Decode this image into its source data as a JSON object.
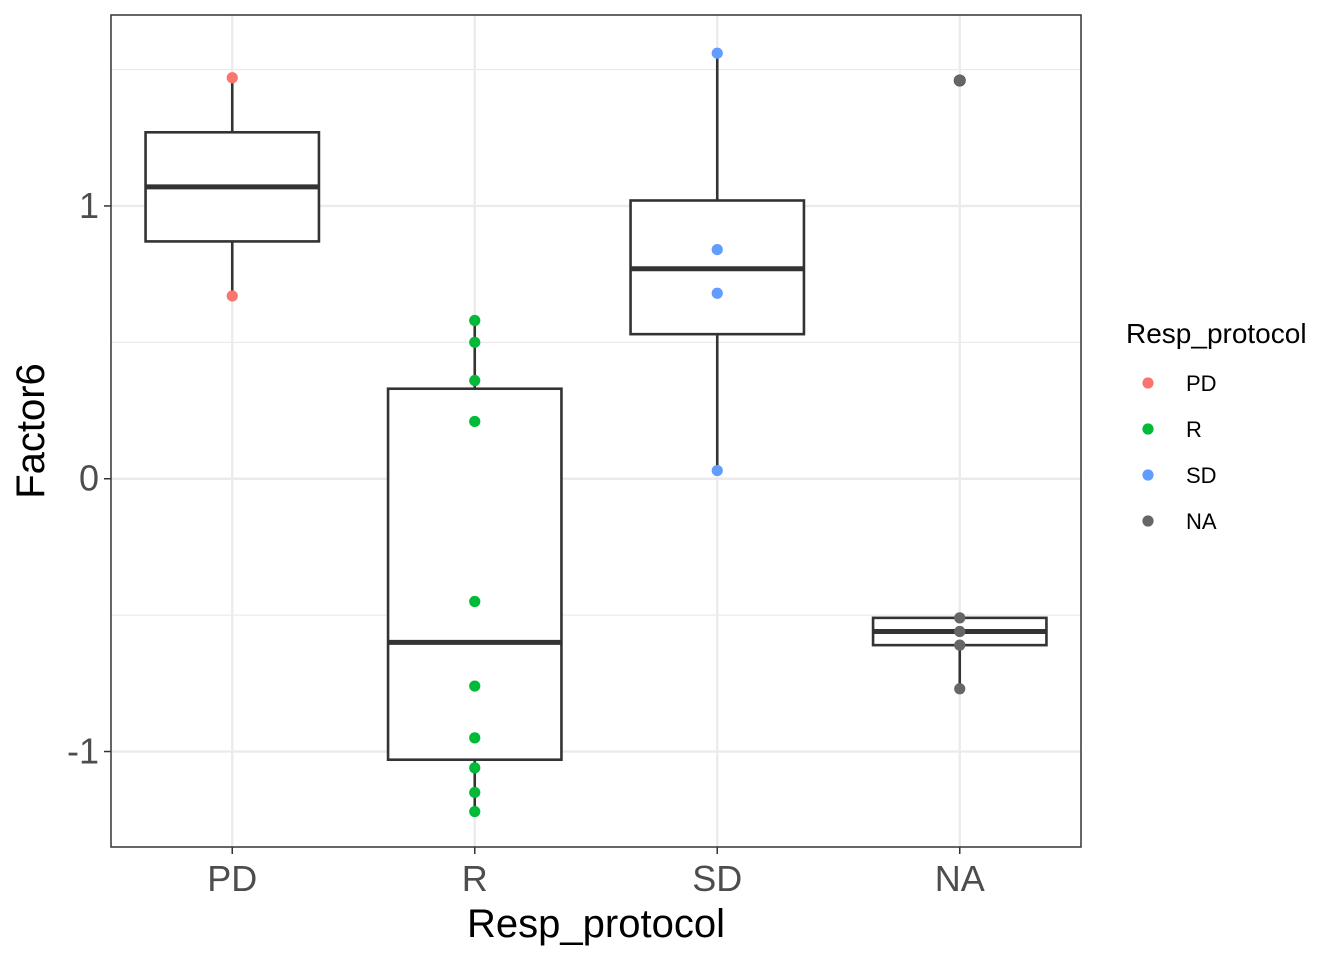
{
  "chart_data": {
    "type": "box",
    "xlabel": "Resp_protocol",
    "ylabel": "Factor6",
    "categories": [
      "PD",
      "R",
      "SD",
      "NA"
    ],
    "y_ticks": [
      -1,
      0,
      1
    ],
    "y_tick_labels": [
      "-1",
      "0",
      "1"
    ],
    "ylim": [
      -1.35,
      1.7
    ],
    "grid": true,
    "legend": {
      "title": "Resp_protocol",
      "position": "right",
      "entries": [
        "PD",
        "R",
        "SD",
        "NA"
      ]
    },
    "colors": {
      "PD": "#F8766D",
      "R": "#00BA38",
      "SD": "#619CFF",
      "NA": "#666666"
    },
    "boxes": [
      {
        "category": "PD",
        "whisker_low": 0.67,
        "q1": 0.87,
        "median": 1.07,
        "q3": 1.27,
        "whisker_high": 1.47
      },
      {
        "category": "R",
        "whisker_low": -1.22,
        "q1": -1.03,
        "median": -0.6,
        "q3": 0.33,
        "whisker_high": 0.58
      },
      {
        "category": "SD",
        "whisker_low": 0.03,
        "q1": 0.53,
        "median": 0.77,
        "q3": 1.02,
        "whisker_high": 1.56
      },
      {
        "category": "NA",
        "whisker_low": -0.77,
        "q1": -0.61,
        "median": -0.56,
        "q3": -0.51,
        "whisker_high": -0.51
      }
    ],
    "outliers": [
      {
        "category": "NA",
        "y": 1.46
      }
    ],
    "points": [
      {
        "category": "PD",
        "y": 1.47
      },
      {
        "category": "PD",
        "y": 0.67
      },
      {
        "category": "R",
        "y": 0.58
      },
      {
        "category": "R",
        "y": 0.5
      },
      {
        "category": "R",
        "y": 0.36
      },
      {
        "category": "R",
        "y": 0.21
      },
      {
        "category": "R",
        "y": -0.45
      },
      {
        "category": "R",
        "y": -0.76
      },
      {
        "category": "R",
        "y": -0.95
      },
      {
        "category": "R",
        "y": -1.06
      },
      {
        "category": "R",
        "y": -1.15
      },
      {
        "category": "R",
        "y": -1.22
      },
      {
        "category": "SD",
        "y": 1.56
      },
      {
        "category": "SD",
        "y": 0.84
      },
      {
        "category": "SD",
        "y": 0.68
      },
      {
        "category": "SD",
        "y": 0.03
      },
      {
        "category": "NA",
        "y": 1.46
      },
      {
        "category": "NA",
        "y": -0.51
      },
      {
        "category": "NA",
        "y": -0.56
      },
      {
        "category": "NA",
        "y": -0.61
      },
      {
        "category": "NA",
        "y": -0.77
      }
    ]
  }
}
